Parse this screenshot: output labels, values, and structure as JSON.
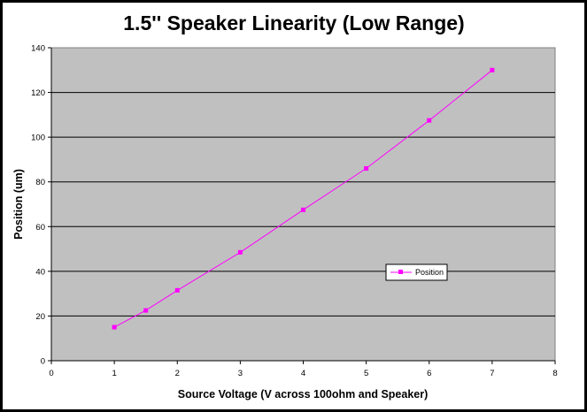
{
  "chart_data": {
    "type": "line",
    "title": "1.5'' Speaker Linearity (Low Range)",
    "xlabel": "Source Voltage (V across 100ohm and Speaker)",
    "ylabel": "Position (um)",
    "xlim": [
      0,
      8
    ],
    "ylim": [
      0,
      140
    ],
    "xticks": [
      0,
      1,
      2,
      3,
      4,
      5,
      6,
      7,
      8
    ],
    "yticks": [
      0,
      20,
      40,
      60,
      80,
      100,
      120,
      140
    ],
    "grid": "horizontal",
    "legend_position": "lower-right",
    "plot_background": "#c0c0c0",
    "series": [
      {
        "name": "Position",
        "color": "#ff00ff",
        "marker": "square",
        "x": [
          1,
          1.5,
          2,
          3,
          4,
          5,
          6,
          7
        ],
        "y": [
          15,
          22.5,
          31.5,
          48.5,
          67.5,
          86,
          107.5,
          130
        ]
      }
    ]
  }
}
